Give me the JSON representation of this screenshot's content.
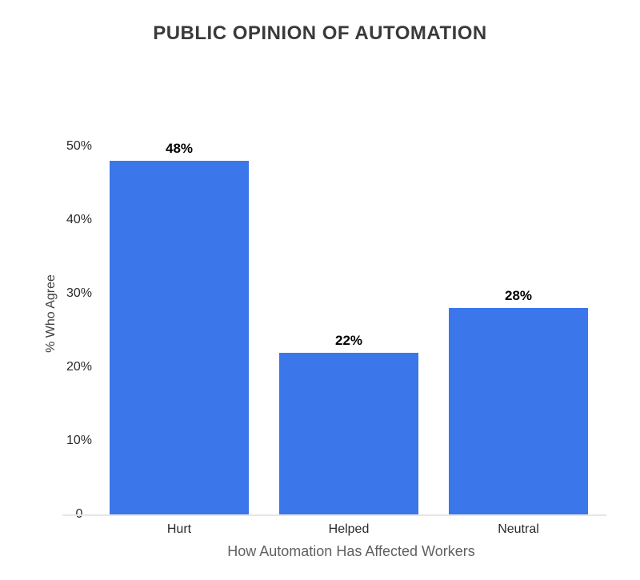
{
  "page": {
    "background": "#ffffff"
  },
  "chart_data": {
    "type": "bar",
    "title": "PUBLIC OPINION OF AUTOMATION",
    "xlabel": "How Automation Has Affected Workers",
    "ylabel": "% Who Agree",
    "categories": [
      "Hurt",
      "Helped",
      "Neutral"
    ],
    "values": [
      48,
      22,
      28
    ],
    "value_labels": [
      "48%",
      "22%",
      "28%"
    ],
    "yticks": [
      {
        "value": 0,
        "label": "0"
      },
      {
        "value": 10,
        "label": "10%"
      },
      {
        "value": 20,
        "label": "20%"
      },
      {
        "value": 30,
        "label": "30%"
      },
      {
        "value": 40,
        "label": "40%"
      },
      {
        "value": 50,
        "label": "50%"
      }
    ],
    "ylim": [
      0,
      50
    ],
    "grid": false,
    "legend": false,
    "colors": {
      "bar": "#3B76EB",
      "title_text": "#3a3a3a",
      "tick_text": "#2a2a2a",
      "category_text": "#2a2a2a",
      "value_label_text": "#000000",
      "ylabel_text": "#424242",
      "xlabel_text": "#606060",
      "baseline": "#e6e6e6"
    }
  }
}
